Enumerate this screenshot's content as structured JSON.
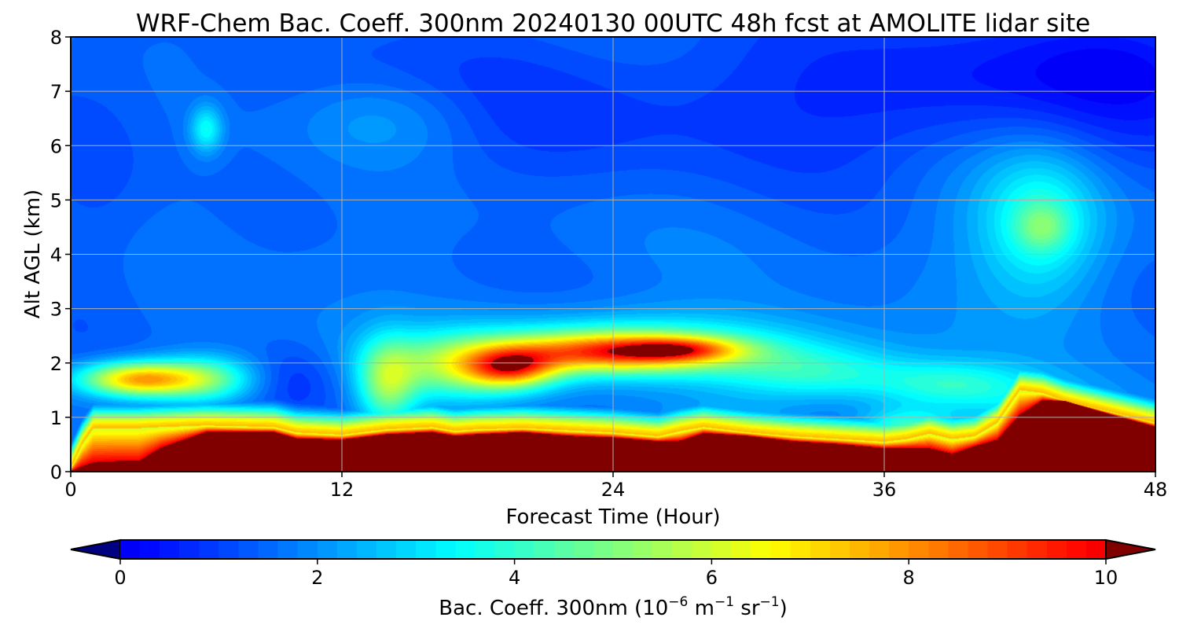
{
  "chart_data": {
    "type": "heatmap",
    "title": "WRF-Chem Bac. Coeff. 300nm  20240130 00UTC 48h fcst at AMOLITE lidar site",
    "xlabel": "Forecast Time (Hour)",
    "ylabel": "Alt AGL (km)",
    "xlim": [
      0,
      48
    ],
    "ylim": [
      0,
      8
    ],
    "xticks": [
      0,
      12,
      24,
      36,
      48
    ],
    "yticks": [
      0,
      1,
      2,
      3,
      4,
      5,
      6,
      7,
      8
    ],
    "grid": true,
    "colormap": "jet",
    "colorbar": {
      "orientation": "horizontal",
      "placement": "bottom",
      "label_main": "Bac. Coeff. 300nm  (10",
      "label_exp1": "−6",
      "label_mid": " m",
      "label_exp2": "−1",
      "label_mid2": " sr",
      "label_exp3": "−1",
      "label_end": ")",
      "vmin": 0,
      "vmax": 10,
      "ticks": [
        0,
        2,
        4,
        6,
        8,
        10
      ],
      "extend": "both"
    },
    "colors": {
      "min_extend": "#000080",
      "max_extend": "#800000"
    },
    "background_value": 1.6,
    "features": [
      {
        "t": 26,
        "z": 6.8,
        "st": 30,
        "sz": 1.1,
        "amp": -0.7
      },
      {
        "t": 42,
        "z": 7.2,
        "st": 6,
        "sz": 1.0,
        "amp": -0.7
      },
      {
        "t": 47,
        "z": 7.6,
        "st": 3,
        "sz": 0.6,
        "amp": -0.5
      },
      {
        "t": 1,
        "z": 4.2,
        "st": 2,
        "sz": 2.0,
        "amp": -0.5
      },
      {
        "t": 5,
        "z": 6.8,
        "st": 3,
        "sz": 1.8,
        "amp": 0.5
      },
      {
        "t": 6,
        "z": 6.3,
        "st": 0.5,
        "sz": 0.3,
        "amp": 2.0
      },
      {
        "t": 14,
        "z": 6.5,
        "st": 3,
        "sz": 0.6,
        "amp": 0.9
      },
      {
        "t": 10,
        "z": 1.7,
        "st": 1.2,
        "sz": 0.45,
        "amp": -0.6
      },
      {
        "t": 43,
        "z": 4.6,
        "st": 1.8,
        "sz": 0.9,
        "amp": 1.8
      },
      {
        "t": 43,
        "z": 4.5,
        "st": 0.8,
        "sz": 0.3,
        "amp": 1.4
      },
      {
        "t": 42,
        "z": 5.0,
        "st": 3,
        "sz": 1.5,
        "amp": 0.6
      },
      {
        "t": 3,
        "z": 1.7,
        "st": 1.8,
        "sz": 0.22,
        "amp": 6.0
      },
      {
        "t": 6,
        "z": 1.7,
        "st": 1.5,
        "sz": 0.3,
        "amp": 2.8
      },
      {
        "t": 14,
        "z": 1.6,
        "st": 0.9,
        "sz": 0.55,
        "amp": 3.2
      },
      {
        "t": 17,
        "z": 1.9,
        "st": 2.2,
        "sz": 0.4,
        "amp": 3.0
      },
      {
        "t": 19.5,
        "z": 1.9,
        "st": 1.4,
        "sz": 0.25,
        "amp": 5.0
      },
      {
        "t": 24,
        "z": 2.2,
        "st": 3.5,
        "sz": 0.25,
        "amp": 5.8
      },
      {
        "t": 27,
        "z": 2.25,
        "st": 1.8,
        "sz": 0.15,
        "amp": 3.0
      },
      {
        "t": 25,
        "z": 2.3,
        "st": 6,
        "sz": 0.45,
        "amp": 2.2
      },
      {
        "t": 33,
        "z": 1.8,
        "st": 3,
        "sz": 0.35,
        "amp": 2.0
      },
      {
        "t": 39,
        "z": 1.6,
        "st": 2.5,
        "sz": 0.3,
        "amp": 2.0
      },
      {
        "t": 43,
        "z": 1.0,
        "st": 3,
        "sz": 0.45,
        "amp": 1.2
      },
      {
        "t": 37,
        "z": 0.7,
        "st": 1.5,
        "sz": 0.3,
        "amp": 3.0
      },
      {
        "t": 29,
        "z": 0.5,
        "st": 2,
        "sz": 0.35,
        "amp": 2.5
      }
    ],
    "surface_layer": {
      "hours": [
        0,
        0.5,
        1,
        2,
        3,
        4,
        6,
        9,
        10,
        12,
        14,
        16,
        17,
        18,
        20,
        22,
        24,
        26,
        27,
        28,
        30,
        32,
        34,
        36,
        37,
        38,
        39,
        40,
        41,
        42,
        43,
        44,
        46,
        48
      ],
      "top_km": [
        0.05,
        0.5,
        0.8,
        0.8,
        0.8,
        0.82,
        0.85,
        0.82,
        0.72,
        0.68,
        0.78,
        0.82,
        0.75,
        0.78,
        0.8,
        0.76,
        0.72,
        0.65,
        0.75,
        0.82,
        0.72,
        0.65,
        0.6,
        0.55,
        0.6,
        0.7,
        0.6,
        0.65,
        0.9,
        1.5,
        1.45,
        1.3,
        1.1,
        0.9
      ],
      "core_km": [
        0,
        0.05,
        0.1,
        0.12,
        0.12,
        0.4,
        0.72,
        0.72,
        0.6,
        0.58,
        0.68,
        0.72,
        0.65,
        0.68,
        0.72,
        0.65,
        0.62,
        0.55,
        0.55,
        0.7,
        0.65,
        0.55,
        0.5,
        0.42,
        0.42,
        0.4,
        0.3,
        0.45,
        0.55,
        1.0,
        1.3,
        1.3,
        1.05,
        0.82
      ]
    }
  }
}
